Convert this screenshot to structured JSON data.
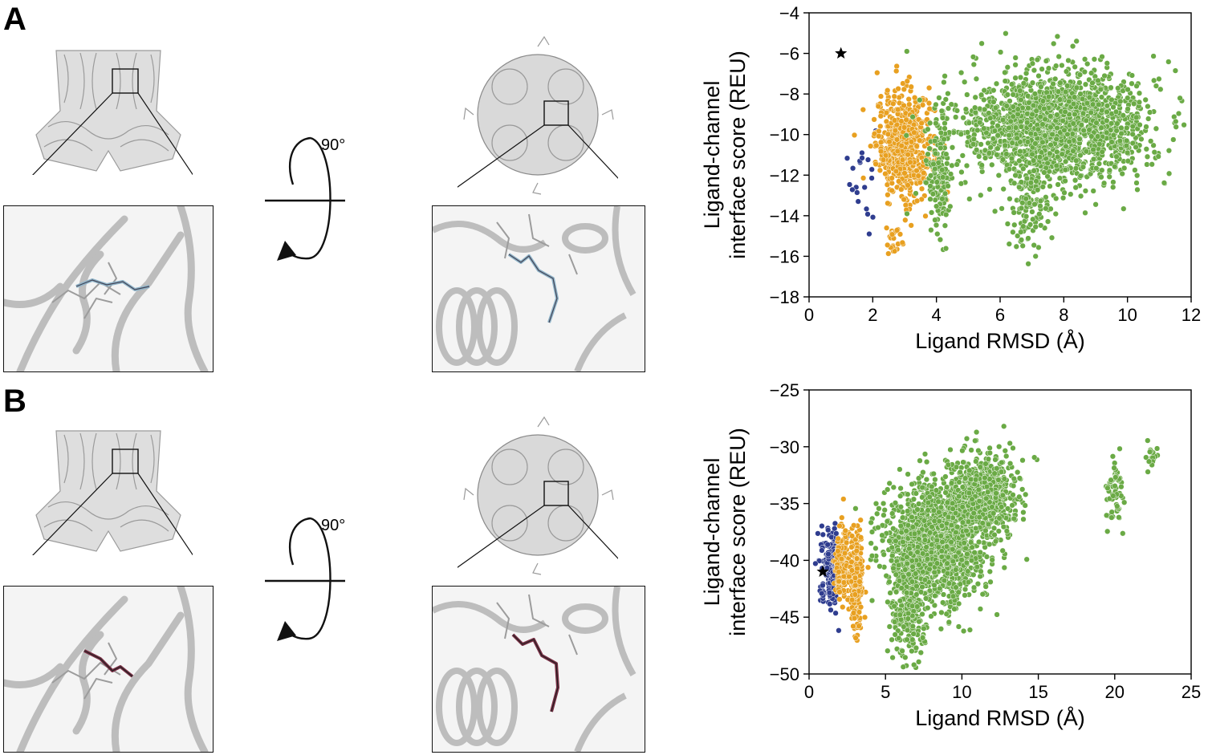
{
  "panels": [
    {
      "letter": "A",
      "rotation_label": "90°",
      "ligand_color": "#8fb4c9",
      "chart_data": {
        "type": "scatter",
        "xlabel": "Ligand RMSD (Å)",
        "ylabel_line1": "Ligand-channel",
        "ylabel_line2": "interface score (REU)",
        "xlim": [
          0,
          12
        ],
        "ylim": [
          -18,
          -4
        ],
        "xticks": [
          "0",
          "2",
          "4",
          "6",
          "8",
          "10",
          "12"
        ],
        "xtick_values": [
          0,
          2,
          4,
          6,
          8,
          10,
          12
        ],
        "yticks": [
          "−18",
          "−16",
          "−14",
          "−12",
          "−10",
          "−8",
          "−6",
          "−4"
        ],
        "ytick_values": [
          -18,
          -16,
          -14,
          -12,
          -10,
          -8,
          -6,
          -4
        ],
        "reference_star": {
          "x": 1.0,
          "y": -6.0
        },
        "series": [
          {
            "color": "#2f3d8f",
            "clusters": [
              {
                "cx": 1.7,
                "cy": -12.0,
                "sx": 0.2,
                "sy": 1.4,
                "n": 20
              }
            ]
          },
          {
            "color": "#e8a020",
            "clusters": [
              {
                "cx": 3.0,
                "cy": -10.5,
                "sx": 0.45,
                "sy": 1.3,
                "n": 600
              },
              {
                "cx": 2.7,
                "cy": -15.2,
                "sx": 0.15,
                "sy": 0.4,
                "n": 25
              }
            ]
          },
          {
            "color": "#6aaa45",
            "clusters": [
              {
                "cx": 7.8,
                "cy": -9.6,
                "sx": 1.5,
                "sy": 1.4,
                "n": 1700
              },
              {
                "cx": 4.1,
                "cy": -12.0,
                "sx": 0.2,
                "sy": 1.6,
                "n": 150
              },
              {
                "cx": 6.9,
                "cy": -13.5,
                "sx": 0.35,
                "sy": 1.1,
                "n": 120
              }
            ]
          }
        ]
      }
    },
    {
      "letter": "B",
      "rotation_label": "90°",
      "ligand_color": "#7a2e45",
      "chart_data": {
        "type": "scatter",
        "xlabel": "Ligand RMSD (Å)",
        "ylabel_line1": "Ligand-channel",
        "ylabel_line2": "interface score (REU)",
        "xlim": [
          0,
          25
        ],
        "ylim": [
          -50,
          -25
        ],
        "xticks": [
          "0",
          "5",
          "10",
          "15",
          "20",
          "25"
        ],
        "xtick_values": [
          0,
          5,
          10,
          15,
          20,
          25
        ],
        "yticks": [
          "−50",
          "−45",
          "−40",
          "−35",
          "−30",
          "−25"
        ],
        "ytick_values": [
          -50,
          -45,
          -40,
          -35,
          -30,
          -25
        ],
        "reference_star": {
          "x": 0.9,
          "y": -41.0
        },
        "series": [
          {
            "color": "#2f3d8f",
            "clusters": [
              {
                "cx": 1.5,
                "cy": -40.5,
                "sx": 0.35,
                "sy": 1.6,
                "n": 220
              }
            ]
          },
          {
            "color": "#e8a020",
            "clusters": [
              {
                "cx": 2.1,
                "cy": -40.5,
                "sx": 0.25,
                "sy": 1.8,
                "n": 150
              },
              {
                "cx": 3.1,
                "cy": -42.0,
                "sx": 0.2,
                "sy": 2.2,
                "n": 220
              }
            ]
          },
          {
            "color": "#6aaa45",
            "clusters": [
              {
                "cx": 8.3,
                "cy": -38.5,
                "sx": 1.6,
                "sy": 2.6,
                "n": 1500
              },
              {
                "cx": 6.5,
                "cy": -44.5,
                "sx": 0.6,
                "sy": 2.2,
                "n": 250
              },
              {
                "cx": 11.5,
                "cy": -34.0,
                "sx": 1.1,
                "sy": 1.7,
                "n": 500
              },
              {
                "cx": 20.0,
                "cy": -34.5,
                "sx": 0.3,
                "sy": 1.4,
                "n": 60
              },
              {
                "cx": 22.4,
                "cy": -30.8,
                "sx": 0.2,
                "sy": 0.5,
                "n": 20
              }
            ]
          }
        ]
      }
    }
  ]
}
